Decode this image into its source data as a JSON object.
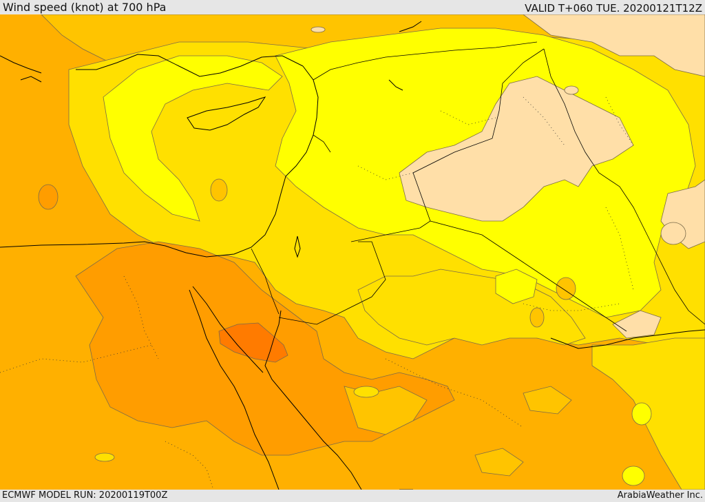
{
  "header": {
    "title": "Wind speed (knot) at 700 hPa",
    "valid": "VALID T+060 TUE. 20200121T12Z"
  },
  "footer": {
    "model_run": "ECMWF MODEL RUN: 20200119T00Z",
    "credit": "ArabiaWeather Inc."
  },
  "map": {
    "palette": {
      "calm_peach": "#ffdfa8",
      "light_yellow": "#ffff00",
      "yellow": "#ffe000",
      "gold": "#ffc400",
      "amber": "#ffb000",
      "orange": "#ff9d00",
      "dark_orange": "#ff7b00",
      "contour": "#7a6a4a",
      "border": "#000000"
    }
  }
}
